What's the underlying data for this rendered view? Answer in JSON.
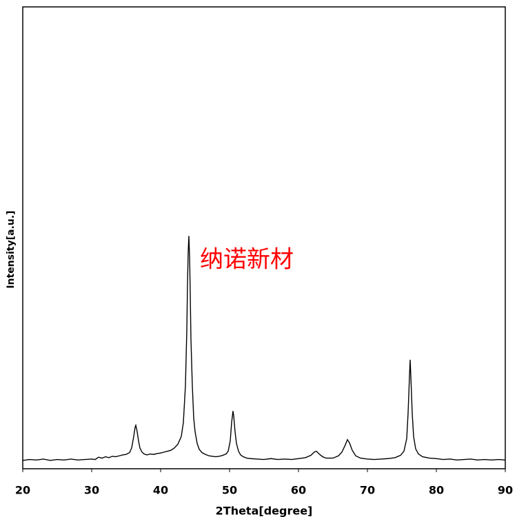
{
  "chart_data": {
    "type": "line",
    "xlabel": "2Theta[degree]",
    "ylabel": "Intensity[a.u.]",
    "annotation": "纳诺新材",
    "annotation_color": "#ff0000",
    "xlim": [
      20,
      90
    ],
    "xticks": [
      20,
      30,
      40,
      50,
      60,
      70,
      80,
      90
    ],
    "ylim": [
      0,
      100
    ],
    "color": "#000000",
    "x": [
      20,
      21,
      22,
      23,
      24,
      25,
      26,
      27,
      28,
      29,
      30,
      30.5,
      31,
      31.5,
      32,
      32.5,
      33,
      33.5,
      34,
      34.5,
      35,
      35.5,
      35.8,
      36.1,
      36.3,
      36.4,
      36.6,
      36.8,
      37,
      37.3,
      37.6,
      38,
      38.5,
      39,
      39.5,
      40,
      40.5,
      41,
      41.5,
      42,
      42.5,
      43,
      43.3,
      43.6,
      43.8,
      43.9,
      44.0,
      44.1,
      44.2,
      44.3,
      44.4,
      44.6,
      44.8,
      45.0,
      45.3,
      45.6,
      46,
      46.5,
      47,
      47.5,
      48,
      48.5,
      49,
      49.5,
      49.8,
      50.1,
      50.3,
      50.5,
      50.6,
      50.8,
      51,
      51.3,
      51.6,
      52,
      52.5,
      53,
      54,
      55,
      56,
      57,
      58,
      59,
      60,
      61,
      61.8,
      62.3,
      62.6,
      63,
      63.5,
      64,
      65,
      65.8,
      66.3,
      66.8,
      67.1,
      67.4,
      67.8,
      68.3,
      69,
      70,
      71,
      72,
      73,
      74,
      74.8,
      75.3,
      75.7,
      75.9,
      76.1,
      76.2,
      76.3,
      76.5,
      76.7,
      77,
      77.4,
      78,
      79,
      80,
      81,
      82,
      83,
      84,
      85,
      86,
      87,
      88,
      89,
      90
    ],
    "values": [
      1.8,
      2.0,
      1.9,
      2.1,
      1.8,
      2.0,
      1.9,
      2.1,
      1.9,
      2.0,
      2.1,
      2.0,
      2.5,
      2.3,
      2.6,
      2.4,
      2.7,
      2.6,
      2.8,
      3.0,
      3.1,
      3.5,
      4.5,
      7.0,
      9.0,
      9.4,
      8.0,
      6.0,
      4.5,
      3.6,
      3.2,
      3.0,
      3.2,
      3.1,
      3.3,
      3.4,
      3.6,
      3.8,
      4.0,
      4.5,
      5.3,
      7.0,
      10,
      18,
      30,
      40,
      47,
      50.4,
      46,
      38,
      28,
      18,
      11,
      8,
      5.5,
      4.2,
      3.5,
      3.1,
      2.8,
      2.7,
      2.6,
      2.7,
      2.9,
      3.2,
      3.8,
      6,
      10,
      12.5,
      11.5,
      8,
      5.5,
      3.8,
      3.0,
      2.6,
      2.3,
      2.2,
      2.1,
      2.0,
      2.2,
      2.0,
      2.1,
      2.0,
      2.2,
      2.4,
      2.9,
      3.6,
      3.8,
      3.2,
      2.6,
      2.3,
      2.3,
      2.8,
      3.6,
      5.2,
      6.3,
      5.6,
      4.0,
      2.8,
      2.3,
      2.1,
      2.0,
      2.1,
      2.2,
      2.4,
      2.9,
      3.8,
      6.5,
      12,
      20,
      23.6,
      20,
      12,
      7,
      4.3,
      3.2,
      2.6,
      2.3,
      2.2,
      2.0,
      2.1,
      1.9,
      2.0,
      2.1,
      1.9,
      2.0,
      1.9,
      2.0,
      1.9
    ]
  }
}
